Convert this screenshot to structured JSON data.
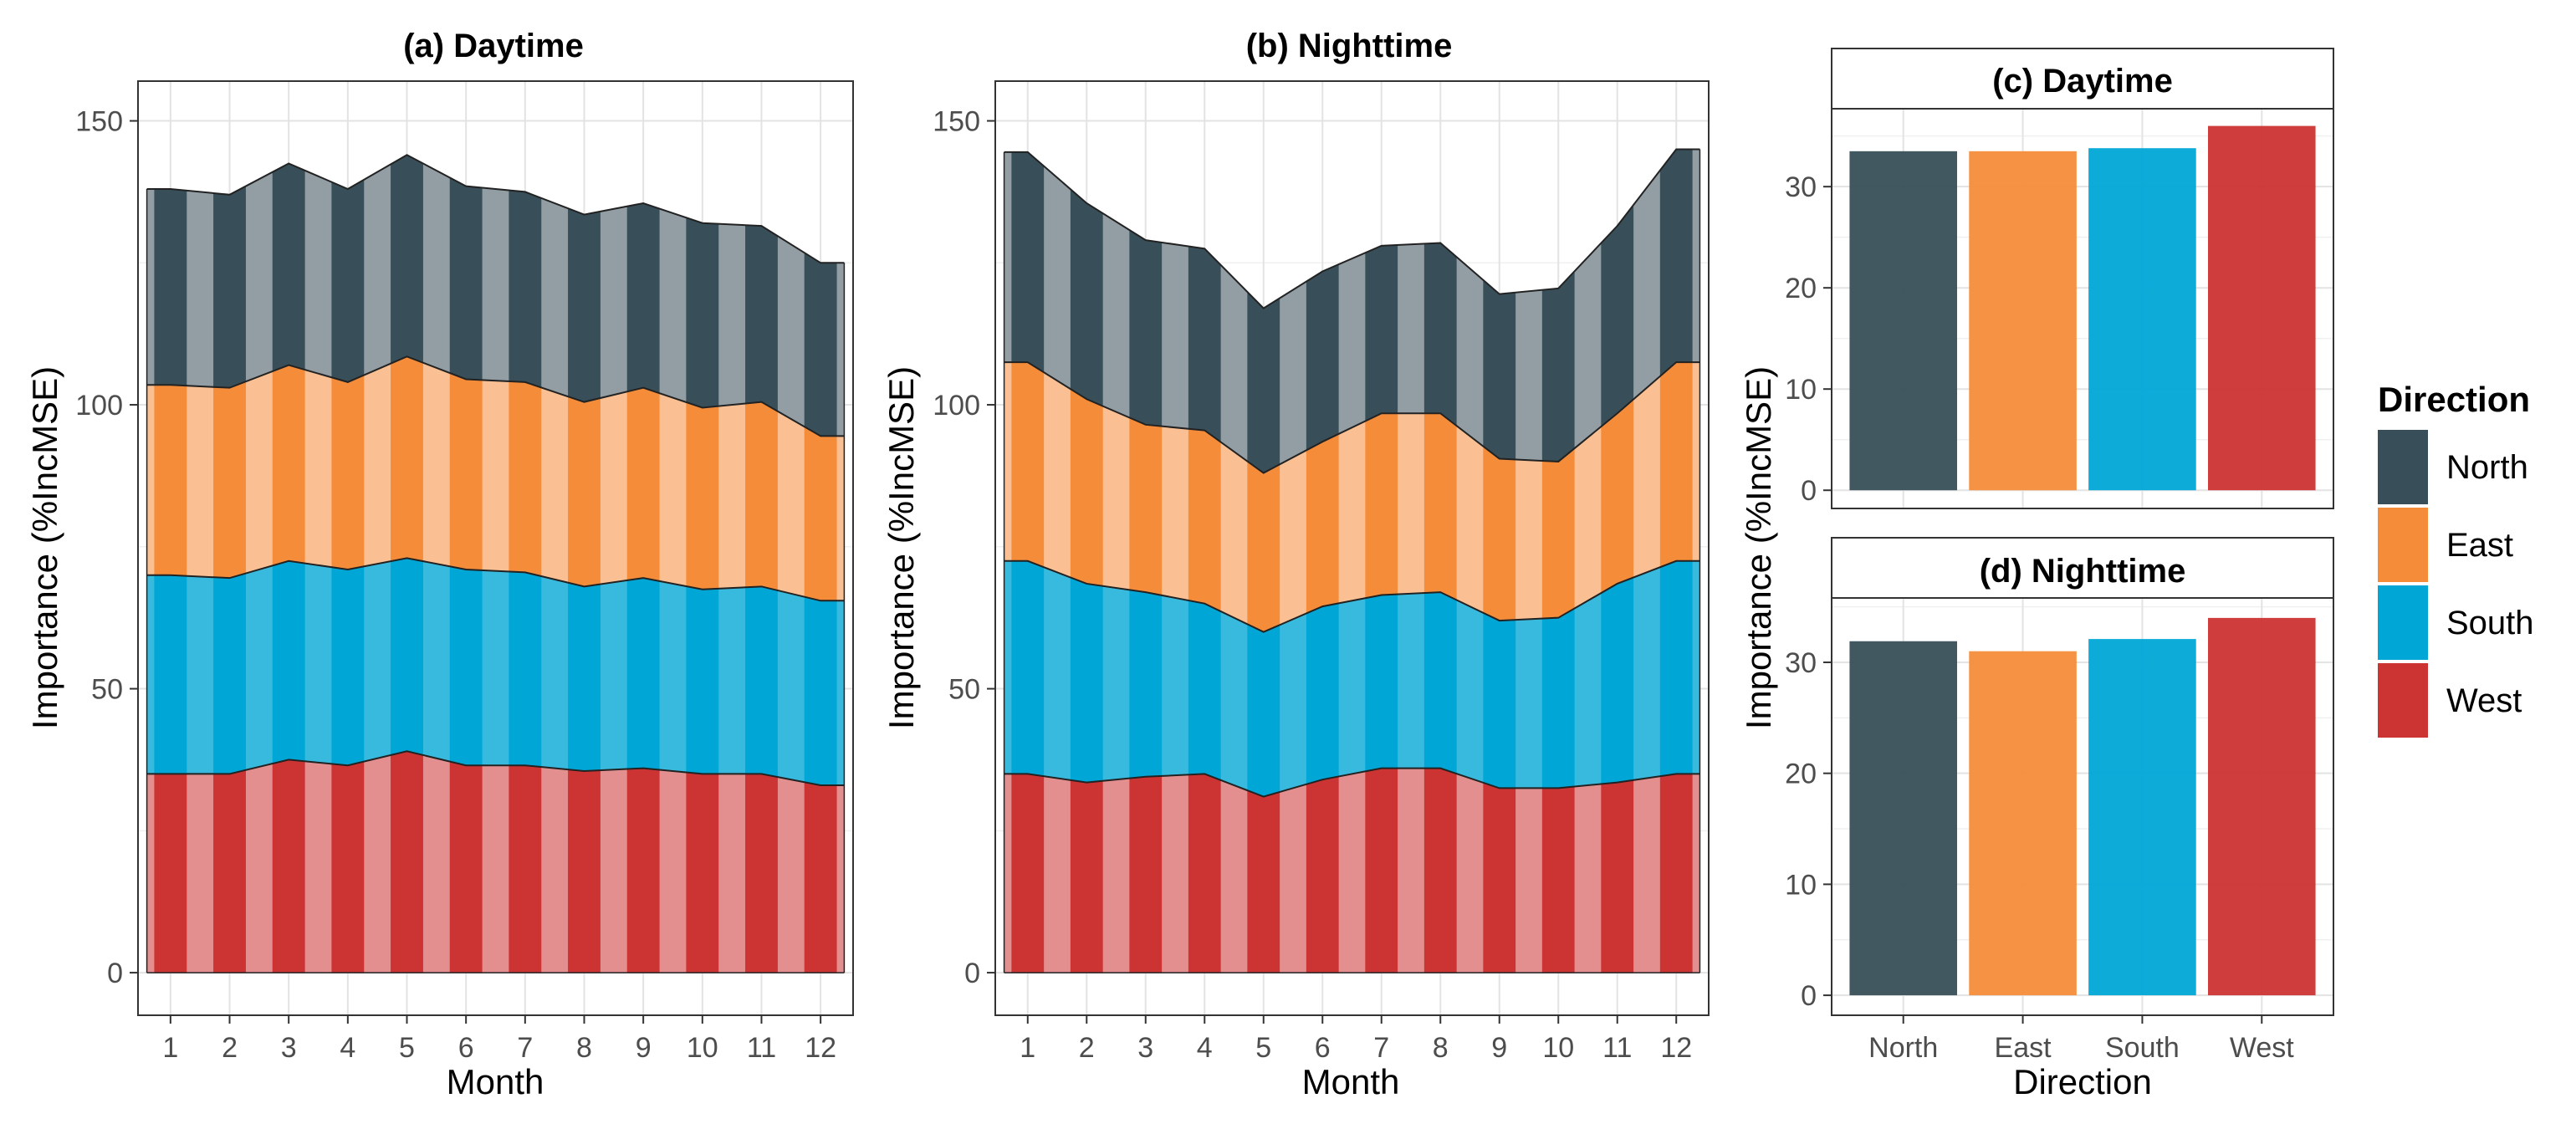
{
  "colors": {
    "North": "#384f59",
    "East": "#f58c3a",
    "South": "#00a6d6",
    "West": "#cc3333"
  },
  "chart_data": [
    {
      "id": "a",
      "type": "area",
      "stacked": true,
      "stack_order_bottom_to_top": [
        "West",
        "South",
        "East",
        "North"
      ],
      "title": "(a) Daytime",
      "xlabel": "Month",
      "ylabel": "Importance (%IncMSE)",
      "x": [
        1,
        2,
        3,
        4,
        5,
        6,
        7,
        8,
        9,
        10,
        11,
        12
      ],
      "xlim": [
        0.45,
        12.55
      ],
      "ylim": [
        -7.5,
        157
      ],
      "yticks": [
        0,
        50,
        100,
        150
      ],
      "xtick_labels": [
        "1",
        "2",
        "3",
        "4",
        "5",
        "6",
        "7",
        "8",
        "9",
        "10",
        "11",
        "12"
      ],
      "series": [
        {
          "name": "West",
          "values": [
            35,
            35,
            37.5,
            36.5,
            39,
            36.5,
            36.5,
            35.5,
            36,
            35,
            35,
            33
          ]
        },
        {
          "name": "South",
          "values": [
            35,
            34.5,
            35,
            34.5,
            34,
            34.5,
            34,
            32.5,
            33.5,
            32.5,
            33,
            32.5
          ]
        },
        {
          "name": "East",
          "values": [
            33.5,
            33.5,
            34.5,
            33,
            35.5,
            33.5,
            33.5,
            32.5,
            33.5,
            32,
            32.5,
            29
          ]
        },
        {
          "name": "North",
          "values": [
            34.5,
            34,
            35.5,
            34,
            35.5,
            34,
            33.5,
            33,
            32.5,
            32.5,
            31,
            30.5
          ]
        }
      ]
    },
    {
      "id": "b",
      "type": "area",
      "stacked": true,
      "stack_order_bottom_to_top": [
        "West",
        "South",
        "East",
        "North"
      ],
      "title": "(b) Nighttime",
      "xlabel": "Month",
      "ylabel": "Importance (%IncMSE)",
      "x": [
        1,
        2,
        3,
        4,
        5,
        6,
        7,
        8,
        9,
        10,
        11,
        12
      ],
      "xlim": [
        0.45,
        12.55
      ],
      "ylim": [
        -7.5,
        157
      ],
      "yticks": [
        0,
        50,
        100,
        150
      ],
      "xtick_labels": [
        "1",
        "2",
        "3",
        "4",
        "5",
        "6",
        "7",
        "8",
        "9",
        "10",
        "11",
        "12"
      ],
      "series": [
        {
          "name": "West",
          "values": [
            35,
            33.5,
            34.5,
            35,
            31,
            34,
            36,
            36,
            32.5,
            32.5,
            33.5,
            35
          ]
        },
        {
          "name": "South",
          "values": [
            37.5,
            35,
            32.5,
            30,
            29,
            30.5,
            30.5,
            31,
            29.5,
            30,
            35,
            37.5
          ]
        },
        {
          "name": "East",
          "values": [
            35,
            32.5,
            29.5,
            30.5,
            28,
            29,
            32,
            31.5,
            28.5,
            27.5,
            30,
            35
          ]
        },
        {
          "name": "North",
          "values": [
            37,
            34.5,
            32.5,
            32,
            29,
            30,
            29.5,
            30,
            29,
            30.5,
            33,
            37.5
          ]
        }
      ]
    },
    {
      "id": "c",
      "type": "bar",
      "title": "(c) Daytime",
      "xlabel": "Direction",
      "ylabel": "Importance (%IncMSE)",
      "categories": [
        "North",
        "East",
        "South",
        "West"
      ],
      "values": [
        33.5,
        33.5,
        33.8,
        36
      ],
      "ylim": [
        -1.8,
        37.7
      ],
      "yticks": [
        0,
        10,
        20,
        30
      ]
    },
    {
      "id": "d",
      "type": "bar",
      "title": "(d) Nighttime",
      "xlabel": "Direction",
      "ylabel": "Importance (%IncMSE)",
      "categories": [
        "North",
        "East",
        "South",
        "West"
      ],
      "values": [
        31.9,
        31,
        32.1,
        34
      ],
      "ylim": [
        -1.8,
        35.8
      ],
      "yticks": [
        0,
        10,
        20,
        30
      ]
    }
  ],
  "legend": {
    "title": "Direction",
    "items": [
      "North",
      "East",
      "South",
      "West"
    ]
  }
}
